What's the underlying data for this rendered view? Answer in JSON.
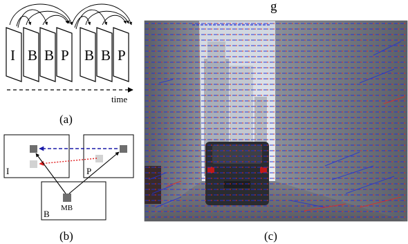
{
  "caption_partial": "g",
  "panel_a": {
    "frames": [
      "I",
      "B",
      "B",
      "P",
      "B",
      "B",
      "P"
    ],
    "time_label": "time",
    "caption": "(a)"
  },
  "panel_b": {
    "frame_labels": {
      "i": "I",
      "p": "P",
      "b": "B"
    },
    "macroblock_label": "MB",
    "caption": "(b)",
    "colors": {
      "forward_vector": "#1a1aa8",
      "backward_vector": "#e02020",
      "block_dark": "#6e6e6e",
      "block_light": "#d2d2d2"
    }
  },
  "panel_c": {
    "caption": "(c)",
    "description_colors": {
      "vector_blue": "#2030d8",
      "vector_red": "#e02828"
    }
  }
}
